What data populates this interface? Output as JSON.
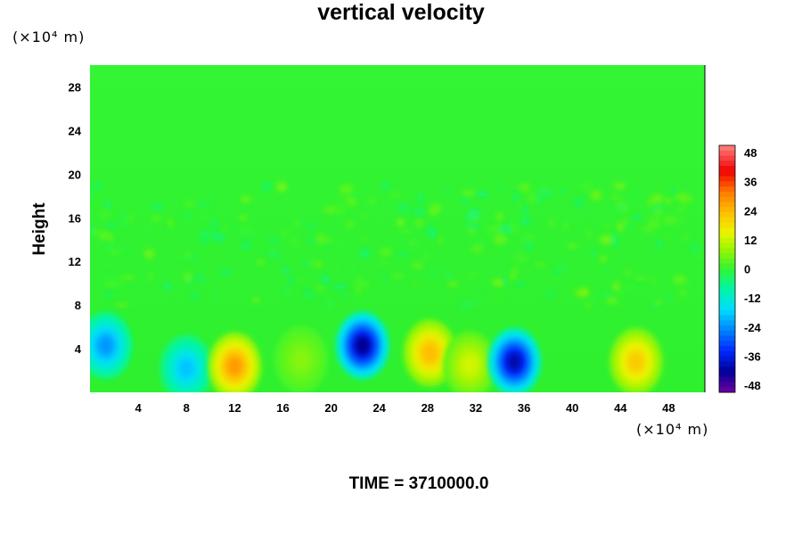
{
  "chart_data": {
    "type": "heatmap",
    "title": "vertical velocity",
    "xlabel": "",
    "ylabel": "Height",
    "x_unit": "(×10⁴ m)",
    "y_unit": "(×10⁴ m)",
    "footer": "TIME = 3710000.0",
    "xlim": [
      0,
      51
    ],
    "ylim": [
      0,
      30
    ],
    "x_ticks": [
      4,
      8,
      12,
      16,
      20,
      24,
      28,
      32,
      36,
      40,
      44,
      48
    ],
    "y_ticks": [
      4,
      8,
      12,
      16,
      20,
      24,
      28
    ],
    "colorbar": {
      "min": -48,
      "max": 48,
      "ticks": [
        48,
        36,
        24,
        12,
        0,
        -12,
        -24,
        -36,
        -48
      ]
    },
    "background_value": 0,
    "features": [
      {
        "x": 1.3,
        "y": 4.3,
        "value": -22
      },
      {
        "x": 8.0,
        "y": 2.2,
        "value": -18
      },
      {
        "x": 12.0,
        "y": 2.4,
        "value": 26
      },
      {
        "x": 22.6,
        "y": 4.3,
        "value": -40
      },
      {
        "x": 28.2,
        "y": 3.6,
        "value": 22
      },
      {
        "x": 31.5,
        "y": 2.5,
        "value": 12
      },
      {
        "x": 35.2,
        "y": 2.8,
        "value": -38
      },
      {
        "x": 45.3,
        "y": 2.8,
        "value": 20
      },
      {
        "x": 17.5,
        "y": 3.0,
        "value": 6
      }
    ],
    "grid": false,
    "colorbar_position": "right"
  }
}
